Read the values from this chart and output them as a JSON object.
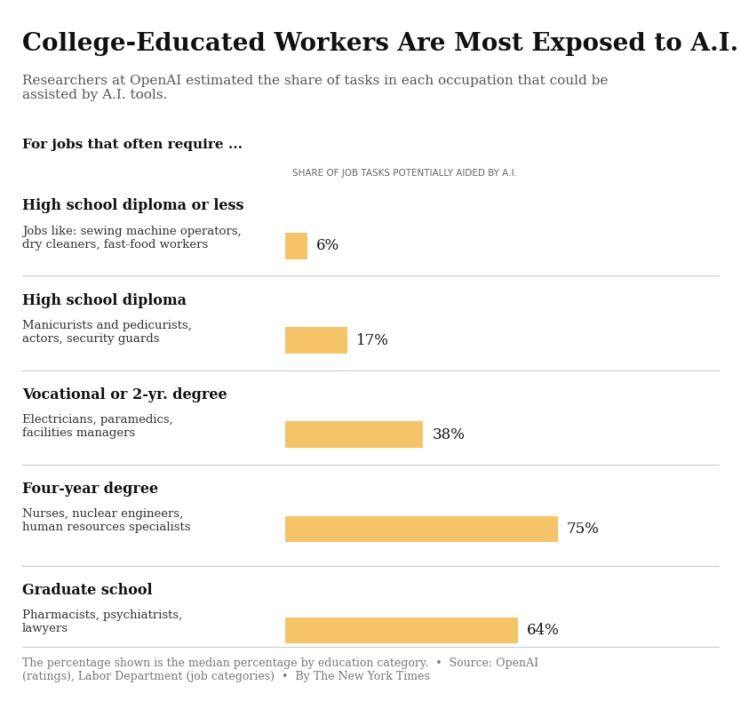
{
  "title": "College-Educated Workers Are Most Exposed to A.I.",
  "subtitle": "Researchers at OpenAI estimated the share of tasks in each occupation that could be\nassisted by A.I. tools.",
  "intro_label": "For jobs that often require ...",
  "bar_header": "SHARE OF JOB TASKS POTENTIALLY AIDED BY A.I.",
  "categories": [
    {
      "heading": "High school diploma or less",
      "examples": "Jobs like: sewing machine operators,\ndry cleaners, fast-food workers",
      "value": 6
    },
    {
      "heading": "High school diploma",
      "examples": "Manicurists and pedicurists,\nactors, security guards",
      "value": 17
    },
    {
      "heading": "Vocational or 2-yr. degree",
      "examples": "Electricians, paramedics,\nfacilities managers",
      "value": 38
    },
    {
      "heading": "Four-year degree",
      "examples": "Nurses, nuclear engineers,\nhuman resources specialists",
      "value": 75
    },
    {
      "heading": "Graduate school",
      "examples": "Pharmacists, psychiatrists,\nlawyers",
      "value": 64
    }
  ],
  "bar_color": "#F5C469",
  "footnote": "The percentage shown is the median percentage by education category.  •  Source: OpenAI\n(ratings), Labor Department (job categories)  •  By The New York Times",
  "background_color": "#ffffff",
  "text_color": "#000000",
  "separator_color": "#cccccc",
  "bar_max": 100
}
